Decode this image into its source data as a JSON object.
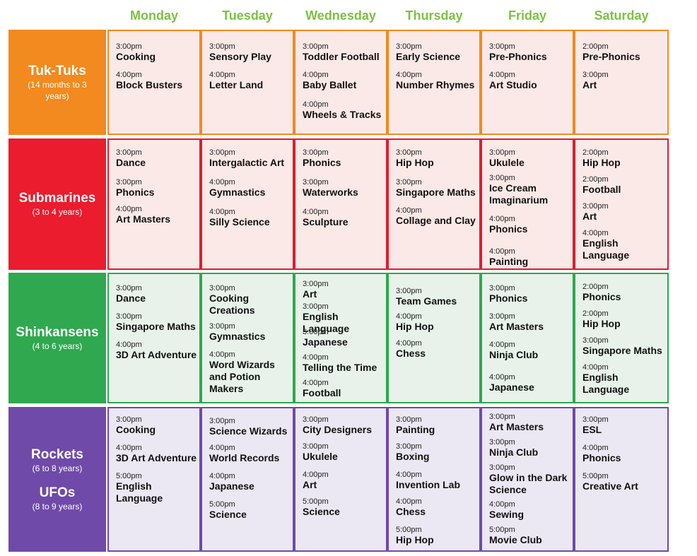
{
  "days": [
    "Monday",
    "Tuesday",
    "Wednesday",
    "Thursday",
    "Friday",
    "Saturday"
  ],
  "theme": {
    "day_header_color": "#7cc242",
    "orange": {
      "main": "#f28a1f",
      "tint": "#fbe9e7",
      "border": "#f28a1f"
    },
    "red": {
      "main": "#ea1c2d",
      "tint": "#fbe9e7",
      "border": "#e31b2e"
    },
    "green": {
      "main": "#2fa84f",
      "tint": "#e8f2ea",
      "border": "#2fa84f"
    },
    "purple": {
      "main": "#6f4aa8",
      "tint": "#ebe7f3",
      "border": "#6f4aa8"
    }
  },
  "groups": [
    {
      "color": "orange",
      "labels": [
        {
          "name": "Tuk-Tuks",
          "age": "(14 months to 3 years)"
        }
      ],
      "days": [
        [
          {
            "time": "3:00pm",
            "activity": "Cooking"
          },
          {
            "time": "4:00pm",
            "activity": "Block Busters"
          }
        ],
        [
          {
            "time": "3:00pm",
            "activity": "Sensory Play"
          },
          {
            "time": "4:00pm",
            "activity": "Letter Land"
          }
        ],
        [
          {
            "time": "3:00pm",
            "activity": "Toddler Football"
          },
          {
            "time": "4:00pm",
            "activity": "Baby Ballet"
          },
          {
            "time": "4:00pm",
            "activity": "Wheels & Tracks"
          }
        ],
        [
          {
            "time": "3:00pm",
            "activity": "Early Science"
          },
          {
            "time": "4:00pm",
            "activity": "Number Rhymes"
          }
        ],
        [
          {
            "time": "3:00pm",
            "activity": "Pre-Phonics"
          },
          {
            "time": "4:00pm",
            "activity": "Art Studio"
          }
        ],
        [
          {
            "time": "2:00pm",
            "activity": "Pre-Phonics"
          },
          {
            "time": "3:00pm",
            "activity": "Art"
          }
        ]
      ]
    },
    {
      "color": "red",
      "labels": [
        {
          "name": "Submarines",
          "age": "(3 to 4 years)"
        }
      ],
      "days": [
        [
          {
            "time": "3:00pm",
            "activity": "Dance"
          },
          {
            "time": "3:00pm",
            "activity": "Phonics"
          },
          {
            "time": "4:00pm",
            "activity": "Art Masters"
          }
        ],
        [
          {
            "time": "3:00pm",
            "activity": "Intergalactic Art"
          },
          {
            "time": "4:00pm",
            "activity": "Gymnastics"
          },
          {
            "time": "4:00pm",
            "activity": "Silly Science"
          }
        ],
        [
          {
            "time": "3:00pm",
            "activity": "Phonics"
          },
          {
            "time": "3:00pm",
            "activity": "Waterworks"
          },
          {
            "time": "4:00pm",
            "activity": "Sculpture"
          }
        ],
        [
          {
            "time": "3:00pm",
            "activity": "Hip Hop"
          },
          {
            "time": "3:00pm",
            "activity": "Singapore Maths"
          },
          {
            "time": "4:00pm",
            "activity": "Collage and Clay"
          }
        ],
        [
          {
            "time": "3:00pm",
            "activity": "Ukulele"
          },
          {
            "time": "3:00pm",
            "activity": "Ice Cream Imaginarium"
          },
          {
            "time": "4:00pm",
            "activity": "Phonics"
          },
          {
            "time": "4:00pm",
            "activity": "Painting"
          }
        ],
        [
          {
            "time": "2:00pm",
            "activity": "Hip Hop"
          },
          {
            "time": "2:00pm",
            "activity": "Football"
          },
          {
            "time": "3:00pm",
            "activity": "Art"
          },
          {
            "time": "4:00pm",
            "activity": "English Language"
          }
        ]
      ]
    },
    {
      "color": "green",
      "labels": [
        {
          "name": "Shinkansens",
          "age": "(4 to 6 years)"
        }
      ],
      "days": [
        [
          {
            "time": "3:00pm",
            "activity": "Dance"
          },
          {
            "time": "3:00pm",
            "activity": "Singapore Maths"
          },
          {
            "time": "4:00pm",
            "activity": "3D Art Adventure"
          }
        ],
        [
          {
            "time": "3:00pm",
            "activity": "Cooking Creations"
          },
          {
            "time": "3:00pm",
            "activity": "Gymnastics"
          },
          {
            "time": "4:00pm",
            "activity": "Word Wizards and Potion Makers"
          }
        ],
        [
          {
            "time": "3:00pm",
            "activity": "Art"
          },
          {
            "time": "3:00pm",
            "activity": "English Language"
          },
          {
            "time": "3:00pm",
            "activity": "Japanese"
          },
          {
            "time": "4:00pm",
            "activity": "Telling the Time"
          },
          {
            "time": "4:00pm",
            "activity": "Football"
          }
        ],
        [
          {
            "time": "3:00pm",
            "activity": "Team Games"
          },
          {
            "time": "4:00pm",
            "activity": "Hip Hop"
          },
          {
            "time": "4:00pm",
            "activity": "Chess"
          }
        ],
        [
          {
            "time": "3:00pm",
            "activity": "Phonics"
          },
          {
            "time": "3:00pm",
            "activity": "Art Masters"
          },
          {
            "time": "4:00pm",
            "activity": "Ninja Club"
          },
          {
            "time": "4:00pm",
            "activity": "Japanese"
          }
        ],
        [
          {
            "time": "2:00pm",
            "activity": "Phonics"
          },
          {
            "time": "2:00pm",
            "activity": "Hip Hop"
          },
          {
            "time": "3:00pm",
            "activity": "Singapore Maths"
          },
          {
            "time": "4:00pm",
            "activity": "English Language"
          }
        ]
      ]
    },
    {
      "color": "purple",
      "labels": [
        {
          "name": "Rockets",
          "age": "(6 to 8 years)"
        },
        {
          "name": "UFOs",
          "age": "(8 to 9 years)"
        }
      ],
      "days": [
        [
          {
            "time": "3:00pm",
            "activity": "Cooking"
          },
          {
            "time": "4:00pm",
            "activity": "3D Art Adventure"
          },
          {
            "time": "5:00pm",
            "activity": "English Language"
          }
        ],
        [
          {
            "time": "3:00pm",
            "activity": "Science Wizards"
          },
          {
            "time": "4:00pm",
            "activity": "World Records"
          },
          {
            "time": "4:00pm",
            "activity": "Japanese"
          },
          {
            "time": "5:00pm",
            "activity": "Science"
          }
        ],
        [
          {
            "time": "3:00pm",
            "activity": "City Designers"
          },
          {
            "time": "3:00pm",
            "activity": "Ukulele"
          },
          {
            "time": "4:00pm",
            "activity": "Art"
          },
          {
            "time": "5:00pm",
            "activity": "Science"
          }
        ],
        [
          {
            "time": "3:00pm",
            "activity": "Painting"
          },
          {
            "time": "3:00pm",
            "activity": "Boxing"
          },
          {
            "time": "4:00pm",
            "activity": "Invention Lab"
          },
          {
            "time": "4:00pm",
            "activity": "Chess"
          },
          {
            "time": "5:00pm",
            "activity": "Hip Hop"
          }
        ],
        [
          {
            "time": "3:00pm",
            "activity": "Art Masters"
          },
          {
            "time": "3:00pm",
            "activity": "Ninja Club"
          },
          {
            "time": "3:00pm",
            "activity": "Glow in the Dark Science"
          },
          {
            "time": "4:00pm",
            "activity": "Sewing"
          },
          {
            "time": "5:00pm",
            "activity": "Movie Club"
          }
        ],
        [
          {
            "time": "3:00pm",
            "activity": "ESL"
          },
          {
            "time": "4:00pm",
            "activity": "Phonics"
          },
          {
            "time": "5:00pm",
            "activity": "Creative Art"
          }
        ]
      ]
    }
  ]
}
